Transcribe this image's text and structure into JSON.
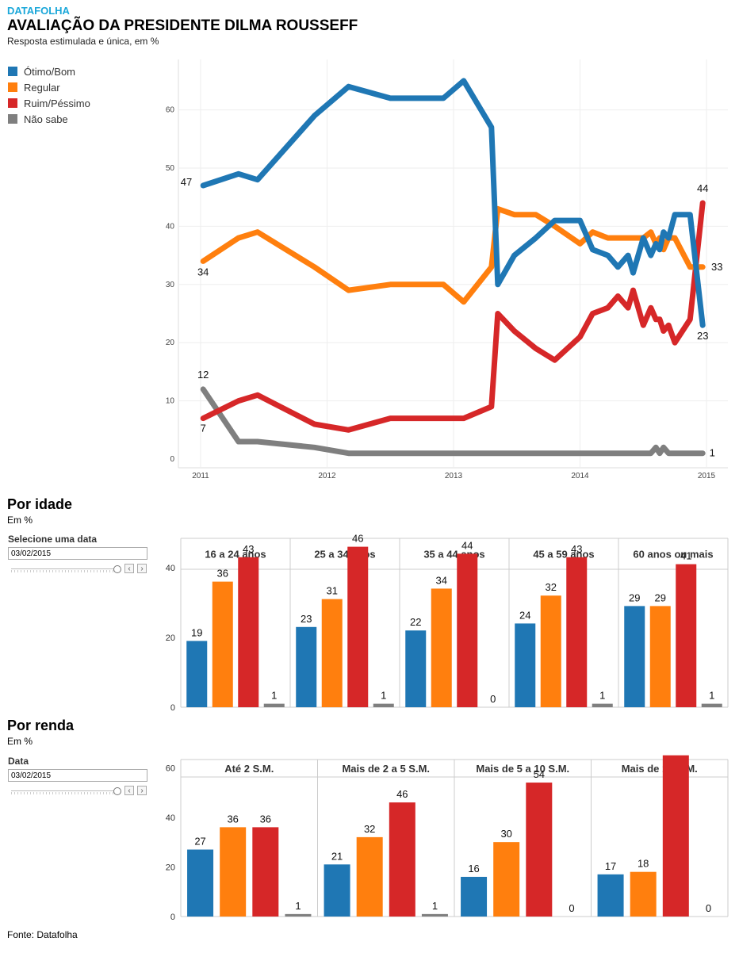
{
  "header": {
    "brand": "DATAFOLHA",
    "title": "AVALIAÇÃO DA PRESIDENTE DILMA ROUSSEFF",
    "subtitle": "Resposta estimulada e única, em %"
  },
  "legend": [
    {
      "label": "Ótimo/Bom",
      "color": "#1f77b4"
    },
    {
      "label": "Regular",
      "color": "#ff7f0e"
    },
    {
      "label": "Ruim/Péssimo",
      "color": "#d62728"
    },
    {
      "label": "Não sabe",
      "color": "#7f7f7f"
    }
  ],
  "sections": {
    "age": {
      "title": "Por idade",
      "subtitle": "Em %",
      "filter_label": "Selecione uma data",
      "date_value": "03/02/2015"
    },
    "income": {
      "title": "Por renda",
      "subtitle": "Em %",
      "filter_label": "Data",
      "date_value": "03/02/2015"
    }
  },
  "source": "Fonte: Datafolha",
  "chart_data": [
    {
      "type": "line",
      "xlim": [
        2011,
        2015
      ],
      "ylim": [
        0,
        65
      ],
      "xticks": [
        "2011",
        "2012",
        "2013",
        "2014",
        "2015"
      ],
      "yticks": [
        "0",
        "10",
        "20",
        "30",
        "40",
        "50",
        "60"
      ],
      "grid": true,
      "legend_position": "left",
      "series": [
        {
          "name": "Ótimo/Bom",
          "color": "#1f77b4",
          "start_label": "47",
          "end_label": "23",
          "points": [
            [
              2011.02,
              47
            ],
            [
              2011.3,
              49
            ],
            [
              2011.45,
              48
            ],
            [
              2011.9,
              59
            ],
            [
              2012.17,
              64
            ],
            [
              2012.5,
              62
            ],
            [
              2012.92,
              62
            ],
            [
              2013.08,
              65
            ],
            [
              2013.3,
              57
            ],
            [
              2013.35,
              30
            ],
            [
              2013.48,
              35
            ],
            [
              2013.65,
              38
            ],
            [
              2013.8,
              41
            ],
            [
              2014.0,
              41
            ],
            [
              2014.1,
              36
            ],
            [
              2014.22,
              35
            ],
            [
              2014.3,
              33
            ],
            [
              2014.38,
              35
            ],
            [
              2014.42,
              32
            ],
            [
              2014.5,
              38
            ],
            [
              2014.56,
              35
            ],
            [
              2014.6,
              37
            ],
            [
              2014.63,
              36
            ],
            [
              2014.66,
              39
            ],
            [
              2014.7,
              38
            ],
            [
              2014.75,
              42
            ],
            [
              2014.87,
              42
            ],
            [
              2014.97,
              23
            ]
          ]
        },
        {
          "name": "Regular",
          "color": "#ff7f0e",
          "start_label": "34",
          "end_label": "33",
          "points": [
            [
              2011.02,
              34
            ],
            [
              2011.3,
              38
            ],
            [
              2011.45,
              39
            ],
            [
              2011.9,
              33
            ],
            [
              2012.17,
              29
            ],
            [
              2012.5,
              30
            ],
            [
              2012.92,
              30
            ],
            [
              2013.08,
              27
            ],
            [
              2013.3,
              33
            ],
            [
              2013.35,
              43
            ],
            [
              2013.48,
              42
            ],
            [
              2013.65,
              42
            ],
            [
              2013.8,
              40
            ],
            [
              2014.0,
              37
            ],
            [
              2014.1,
              39
            ],
            [
              2014.22,
              38
            ],
            [
              2014.3,
              38
            ],
            [
              2014.38,
              38
            ],
            [
              2014.42,
              38
            ],
            [
              2014.5,
              38
            ],
            [
              2014.56,
              39
            ],
            [
              2014.6,
              37
            ],
            [
              2014.63,
              38
            ],
            [
              2014.66,
              36
            ],
            [
              2014.7,
              38
            ],
            [
              2014.75,
              38
            ],
            [
              2014.87,
              33
            ],
            [
              2014.97,
              33
            ]
          ]
        },
        {
          "name": "Ruim/Péssimo",
          "color": "#d62728",
          "start_label": "7",
          "end_label": "44",
          "points": [
            [
              2011.02,
              7
            ],
            [
              2011.3,
              10
            ],
            [
              2011.45,
              11
            ],
            [
              2011.9,
              6
            ],
            [
              2012.17,
              5
            ],
            [
              2012.5,
              7
            ],
            [
              2012.92,
              7
            ],
            [
              2013.08,
              7
            ],
            [
              2013.3,
              9
            ],
            [
              2013.35,
              25
            ],
            [
              2013.48,
              22
            ],
            [
              2013.65,
              19
            ],
            [
              2013.8,
              17
            ],
            [
              2014.0,
              21
            ],
            [
              2014.1,
              25
            ],
            [
              2014.22,
              26
            ],
            [
              2014.3,
              28
            ],
            [
              2014.38,
              26
            ],
            [
              2014.42,
              29
            ],
            [
              2014.5,
              23
            ],
            [
              2014.56,
              26
            ],
            [
              2014.6,
              24
            ],
            [
              2014.63,
              24
            ],
            [
              2014.66,
              22
            ],
            [
              2014.7,
              23
            ],
            [
              2014.75,
              20
            ],
            [
              2014.87,
              24
            ],
            [
              2014.97,
              44
            ]
          ]
        },
        {
          "name": "Não sabe",
          "color": "#7f7f7f",
          "start_label": "12",
          "end_label": "1",
          "points": [
            [
              2011.02,
              12
            ],
            [
              2011.3,
              3
            ],
            [
              2011.45,
              3
            ],
            [
              2011.9,
              2
            ],
            [
              2012.17,
              1
            ],
            [
              2012.5,
              1
            ],
            [
              2012.92,
              1
            ],
            [
              2013.08,
              1
            ],
            [
              2013.3,
              1
            ],
            [
              2013.35,
              1
            ],
            [
              2013.48,
              1
            ],
            [
              2013.65,
              1
            ],
            [
              2013.8,
              1
            ],
            [
              2014.0,
              1
            ],
            [
              2014.1,
              1
            ],
            [
              2014.22,
              1
            ],
            [
              2014.3,
              1
            ],
            [
              2014.38,
              1
            ],
            [
              2014.42,
              1
            ],
            [
              2014.5,
              1
            ],
            [
              2014.56,
              1
            ],
            [
              2014.6,
              2
            ],
            [
              2014.63,
              1
            ],
            [
              2014.66,
              2
            ],
            [
              2014.7,
              1
            ],
            [
              2014.75,
              1
            ],
            [
              2014.87,
              1
            ],
            [
              2014.97,
              1
            ]
          ]
        }
      ]
    },
    {
      "type": "bar",
      "title": "Por idade",
      "ylim": [
        0,
        50
      ],
      "yticks": [
        "0",
        "20",
        "40"
      ],
      "series_names": [
        "Ótimo/Bom",
        "Regular",
        "Ruim/Péssimo",
        "Não sabe"
      ],
      "groups": [
        {
          "label": "16 a 24 anos",
          "values": [
            19,
            36,
            43,
            1
          ]
        },
        {
          "label": "25 a 34 anos",
          "values": [
            23,
            31,
            46,
            1
          ]
        },
        {
          "label": "35 a 44 anos",
          "values": [
            22,
            34,
            44,
            0
          ]
        },
        {
          "label": "45 a 59 anos",
          "values": [
            24,
            32,
            43,
            1
          ]
        },
        {
          "label": "60 anos ou mais",
          "values": [
            29,
            29,
            41,
            1
          ]
        }
      ]
    },
    {
      "type": "bar",
      "title": "Por renda",
      "ylim": [
        0,
        70
      ],
      "yticks": [
        "0",
        "20",
        "40",
        "60"
      ],
      "series_names": [
        "Ótimo/Bom",
        "Regular",
        "Ruim/Péssimo",
        "Não sabe"
      ],
      "groups": [
        {
          "label": "Até 2 S.M.",
          "values": [
            27,
            36,
            36,
            1
          ]
        },
        {
          "label": "Mais de 2 a 5 S.M.",
          "values": [
            21,
            32,
            46,
            1
          ]
        },
        {
          "label": "Mais de 5 a 10 S.M.",
          "values": [
            16,
            30,
            54,
            0
          ]
        },
        {
          "label": "Mais de 10 S.M.",
          "values": [
            17,
            18,
            65,
            0
          ]
        }
      ]
    }
  ]
}
